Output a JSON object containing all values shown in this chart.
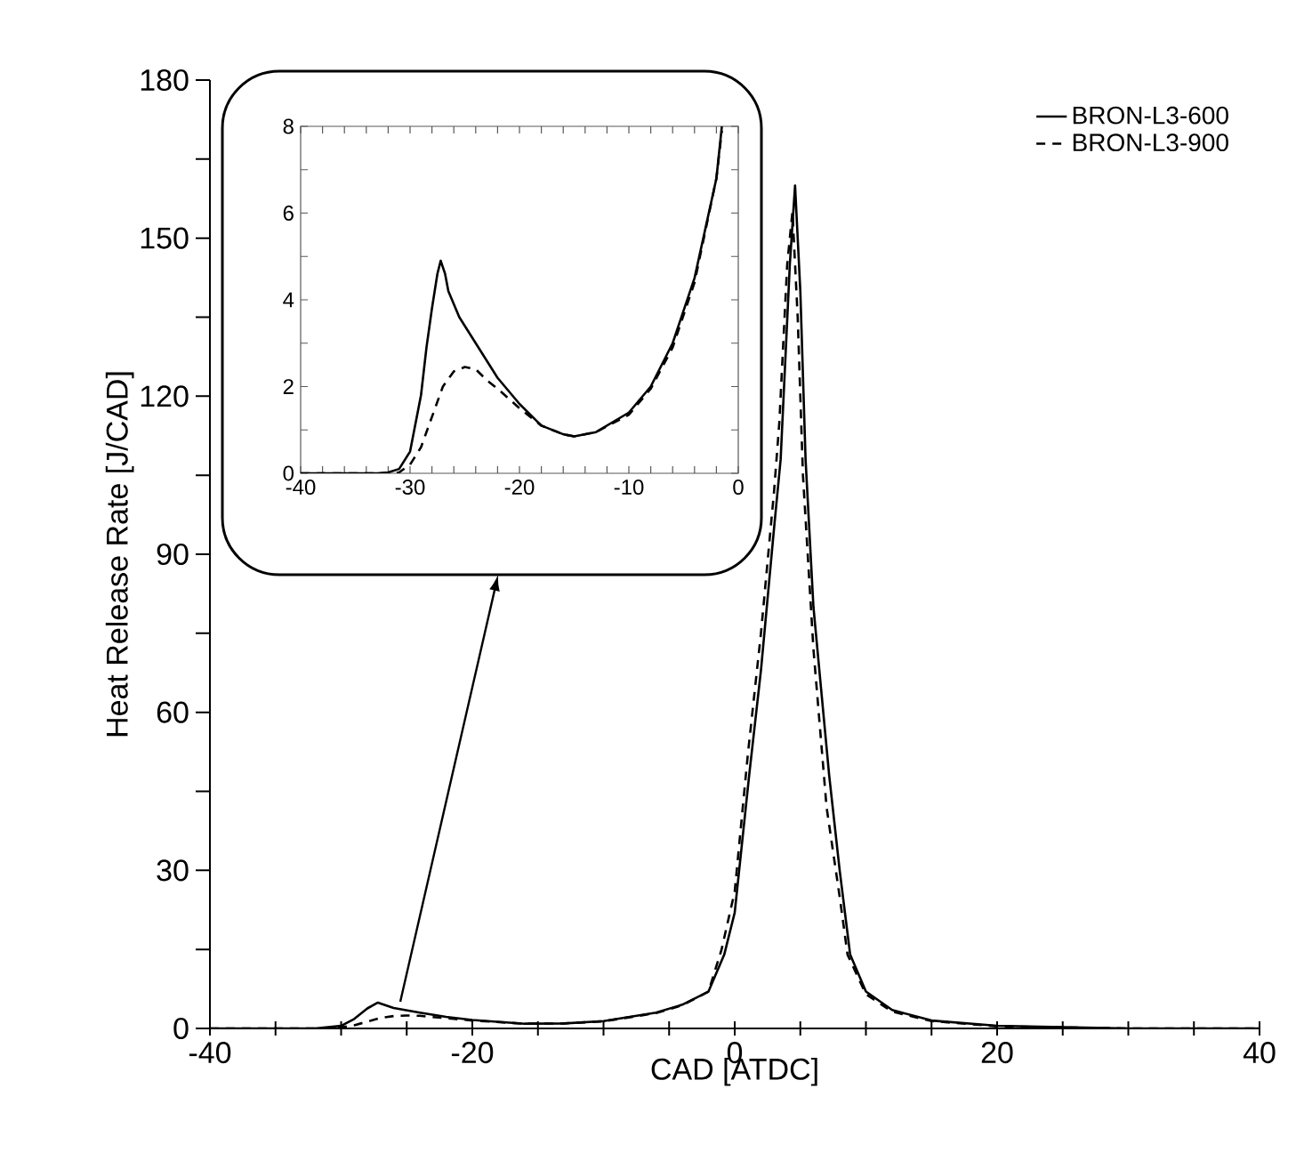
{
  "chart_data": [
    {
      "type": "line",
      "xlabel": "CAD [ATDC]",
      "ylabel": "Heat Release Rate [J/CAD]",
      "xlim": [
        -40,
        40
      ],
      "ylim": [
        0,
        180
      ],
      "xticks": [
        -40,
        {
          "value": -35,
          "label": null
        },
        {
          "value": -30,
          "label": null
        },
        {
          "value": -25,
          "label": null
        },
        -20,
        {
          "value": -15,
          "label": null
        },
        {
          "value": -10,
          "label": null
        },
        {
          "value": -5,
          "label": null
        },
        0,
        {
          "value": 5,
          "label": null
        },
        {
          "value": 10,
          "label": null
        },
        {
          "value": 15,
          "label": null
        },
        20,
        {
          "value": 25,
          "label": null
        },
        {
          "value": 30,
          "label": null
        },
        {
          "value": 35,
          "label": null
        },
        40
      ],
      "yticks": [
        0,
        {
          "value": 15,
          "label": null
        },
        30,
        {
          "value": 45,
          "label": null
        },
        60,
        {
          "value": 75,
          "label": null
        },
        90,
        {
          "value": 105,
          "label": null
        },
        120,
        {
          "value": 135,
          "label": null
        },
        150,
        {
          "value": 165,
          "label": null
        },
        180
      ],
      "legend": "top right",
      "marker": "none",
      "series": [
        {
          "name": "BRON-L3-600",
          "color": "#000000",
          "line_style": "solid",
          "x": [
            -40,
            -32,
            -30,
            -29,
            -28,
            -27.2,
            -26,
            -24,
            -22,
            -20,
            -16,
            -13,
            -10,
            -6,
            -4,
            -2,
            -0.8,
            0,
            1.1,
            2,
            3,
            3.5,
            4.2,
            4.6,
            5,
            5.4,
            6,
            7.2,
            8,
            8.8,
            10,
            12,
            15,
            20,
            30,
            40
          ],
          "values": [
            0,
            0,
            0.5,
            1.8,
            3.8,
            4.9,
            3.9,
            3.0,
            2.2,
            1.6,
            0.9,
            0.95,
            1.4,
            3.0,
            4.5,
            7,
            14,
            22,
            48,
            68,
            95,
            108,
            145,
            160,
            140,
            108,
            80,
            48,
            30,
            14,
            7,
            3.5,
            1.5,
            0.5,
            0,
            0
          ]
        },
        {
          "name": "BRON-L3-900",
          "color": "#000000",
          "line_style": "dashed",
          "x": [
            -40,
            -31,
            -30,
            -29,
            -28,
            -27,
            -26,
            -25,
            -24,
            -23,
            -22,
            -20,
            -16,
            -13,
            -10,
            -6,
            -4,
            -2,
            -1,
            0,
            1,
            2,
            3,
            3.4,
            4,
            4.4,
            4.8,
            5.2,
            6,
            7,
            8,
            8.6,
            10,
            12,
            15,
            20,
            30,
            40
          ],
          "values": [
            0,
            0,
            0.2,
            0.6,
            1.3,
            2.0,
            2.35,
            2.45,
            2.4,
            2.15,
            1.95,
            1.5,
            0.9,
            0.95,
            1.35,
            2.9,
            4.4,
            7,
            15,
            26,
            52,
            75,
            102,
            115,
            145,
            155,
            135,
            105,
            72,
            42,
            25,
            14,
            6.5,
            3.2,
            1.4,
            0.4,
            0,
            0
          ]
        }
      ]
    },
    {
      "type": "line",
      "xlim": [
        -40,
        0
      ],
      "ylim": [
        0,
        8
      ],
      "marker": "none",
      "xticks": [
        -40,
        {
          "value": -38,
          "label": null
        },
        {
          "value": -36,
          "label": null
        },
        {
          "value": -34,
          "label": null
        },
        {
          "value": -32,
          "label": null
        },
        -30,
        {
          "value": -28,
          "label": null
        },
        {
          "value": -26,
          "label": null
        },
        {
          "value": -24,
          "label": null
        },
        {
          "value": -22,
          "label": null
        },
        -20,
        {
          "value": -18,
          "label": null
        },
        {
          "value": -16,
          "label": null
        },
        {
          "value": -14,
          "label": null
        },
        {
          "value": -12,
          "label": null
        },
        -10,
        {
          "value": -8,
          "label": null
        },
        {
          "value": -6,
          "label": null
        },
        {
          "value": -4,
          "label": null
        },
        {
          "value": -2,
          "label": null
        },
        0
      ],
      "yticks": [
        0,
        {
          "value": 1,
          "label": null
        },
        2,
        {
          "value": 3,
          "label": null
        },
        4,
        {
          "value": 5,
          "label": null
        },
        6,
        {
          "value": 7,
          "label": null
        },
        8
      ],
      "series": [
        {
          "color": "#000000",
          "line_style": "solid",
          "x": [
            -40,
            -33,
            -32,
            -31,
            -30,
            -29,
            -28.5,
            -28,
            -27.5,
            -27.2,
            -26.8,
            -26.5,
            -26,
            -25.5,
            -24,
            -22,
            -20,
            -18,
            -16,
            -15,
            -13,
            -10,
            -8,
            -6,
            -4,
            -2,
            -1.5
          ],
          "values": [
            0,
            0,
            0.02,
            0.1,
            0.5,
            1.8,
            2.9,
            3.8,
            4.6,
            4.9,
            4.6,
            4.2,
            3.9,
            3.6,
            3.0,
            2.2,
            1.6,
            1.1,
            0.9,
            0.85,
            0.95,
            1.4,
            2.0,
            3.0,
            4.5,
            6.8,
            8
          ]
        },
        {
          "color": "#000000",
          "line_style": "dashed",
          "x": [
            -40,
            -32,
            -31,
            -30,
            -29,
            -28,
            -27,
            -26,
            -25,
            -24,
            -23,
            -22,
            -20,
            -18,
            -16,
            -15,
            -13,
            -10,
            -8,
            -6,
            -4,
            -2,
            -1.5
          ],
          "values": [
            0,
            0,
            0.02,
            0.2,
            0.6,
            1.3,
            2.0,
            2.35,
            2.45,
            2.4,
            2.15,
            1.95,
            1.5,
            1.1,
            0.9,
            0.85,
            0.95,
            1.35,
            1.95,
            2.9,
            4.4,
            6.8,
            7.9
          ]
        }
      ]
    }
  ]
}
